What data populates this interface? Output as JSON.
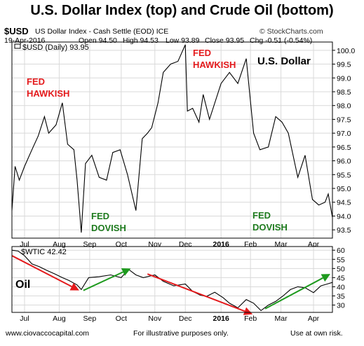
{
  "title": "U.S. Dollar Index (top) and Crude Oil (bottom)",
  "header": {
    "symbol": "$USD",
    "description": "US Dollar Index - Cash Settle (EOD) ICE",
    "date": "19-Apr-2016",
    "open": "Open 94.50",
    "high": "High 94.53",
    "low": "Low 93.89",
    "close": "Close 93.95",
    "chg": "Chg -0.51 (-0.54%)",
    "credit": "© StockCharts.com"
  },
  "annotations": {
    "fed_hawkish_1": [
      "FED",
      "HAWKISH"
    ],
    "fed_dovish_1": [
      "FED",
      "DOVISH"
    ],
    "fed_hawkish_2": [
      "FED",
      "HAWKISH"
    ],
    "fed_dovish_2": [
      "FED",
      "DOVISH"
    ],
    "usd_label": "U.S. Dollar",
    "oil_label": "Oil"
  },
  "footer": {
    "website": "www.ciovaccocapital.com",
    "disclaimer": "For illustrative purposes only.",
    "risk": "Use at own risk."
  },
  "colors": {
    "red_arrow": "#e41a1c",
    "green_arrow": "#1e9a1e",
    "line": "#000000"
  },
  "chart_data": [
    {
      "type": "line",
      "legend": "$USD (Daily) 93.95",
      "ylim": [
        93.2,
        100.3
      ],
      "yticks": [
        93.5,
        94.0,
        94.5,
        95.0,
        95.5,
        96.0,
        96.5,
        97.0,
        97.5,
        98.0,
        98.5,
        99.0,
        99.5,
        100.0
      ],
      "ytick_labels": [
        "93.5",
        "94.0",
        "94.5",
        "95.0",
        "95.5",
        "96.0",
        "96.5",
        "97.0",
        "97.5",
        "98.0",
        "98.5",
        "99.0",
        "99.5",
        "100.0"
      ],
      "x_tick_labels": [
        "Jul",
        "Aug",
        "Sep",
        "Oct",
        "Nov",
        "Dec",
        "2016",
        "Feb",
        "Mar",
        "Apr"
      ],
      "x_start": "2015-06-19",
      "x_end": "2016-04-19",
      "x_ticks": [
        "2015-07-01",
        "2015-08-03",
        "2015-09-01",
        "2015-10-01",
        "2015-11-02",
        "2015-12-01",
        "2016-01-04",
        "2016-02-01",
        "2016-03-01",
        "2016-04-01"
      ],
      "series": [
        {
          "name": "$USD",
          "x": [
            "2015-06-19",
            "2015-06-22",
            "2015-06-26",
            "2015-07-01",
            "2015-07-08",
            "2015-07-14",
            "2015-07-20",
            "2015-07-24",
            "2015-07-31",
            "2015-08-06",
            "2015-08-11",
            "2015-08-17",
            "2015-08-20",
            "2015-08-24",
            "2015-08-28",
            "2015-09-03",
            "2015-09-10",
            "2015-09-17",
            "2015-09-23",
            "2015-09-30",
            "2015-10-07",
            "2015-10-15",
            "2015-10-21",
            "2015-10-26",
            "2015-10-30",
            "2015-11-05",
            "2015-11-10",
            "2015-11-17",
            "2015-11-24",
            "2015-12-01",
            "2015-12-03",
            "2015-12-08",
            "2015-12-14",
            "2015-12-18",
            "2015-12-24",
            "2016-01-04",
            "2016-01-12",
            "2016-01-20",
            "2016-01-28",
            "2016-02-04",
            "2016-02-10",
            "2016-02-18",
            "2016-02-25",
            "2016-03-02",
            "2016-03-08",
            "2016-03-17",
            "2016-03-24",
            "2016-03-31",
            "2016-04-06",
            "2016-04-12",
            "2016-04-15",
            "2016-04-19"
          ],
          "values": [
            94.2,
            95.8,
            95.3,
            95.8,
            96.4,
            96.9,
            97.6,
            97.0,
            97.3,
            98.1,
            96.6,
            96.4,
            95.3,
            93.4,
            95.9,
            96.2,
            95.4,
            95.3,
            96.3,
            96.4,
            95.5,
            94.2,
            96.8,
            97.0,
            97.2,
            98.1,
            99.2,
            99.5,
            99.6,
            100.2,
            97.8,
            97.9,
            97.4,
            98.4,
            97.5,
            98.8,
            99.2,
            98.8,
            99.7,
            97.0,
            96.4,
            96.5,
            97.6,
            97.4,
            97.0,
            95.4,
            96.2,
            94.6,
            94.4,
            94.5,
            94.8,
            93.95
          ]
        }
      ]
    },
    {
      "type": "line",
      "legend": "$WTIC 42.42",
      "ylim": [
        26,
        62
      ],
      "yticks": [
        30,
        35,
        40,
        45,
        50,
        55,
        60
      ],
      "ytick_labels": [
        "30",
        "35",
        "40",
        "45",
        "50",
        "55",
        "60"
      ],
      "series": [
        {
          "name": "$WTIC",
          "x": [
            "2015-06-19",
            "2015-06-25",
            "2015-07-01",
            "2015-07-08",
            "2015-07-15",
            "2015-07-22",
            "2015-07-30",
            "2015-08-06",
            "2015-08-12",
            "2015-08-20",
            "2015-08-24",
            "2015-08-31",
            "2015-09-10",
            "2015-09-21",
            "2015-10-01",
            "2015-10-08",
            "2015-10-15",
            "2015-10-22",
            "2015-11-02",
            "2015-11-10",
            "2015-11-20",
            "2015-12-01",
            "2015-12-08",
            "2015-12-15",
            "2015-12-21",
            "2015-12-29",
            "2016-01-06",
            "2016-01-12",
            "2016-01-20",
            "2016-01-28",
            "2016-02-04",
            "2016-02-11",
            "2016-02-18",
            "2016-02-25",
            "2016-03-03",
            "2016-03-10",
            "2016-03-17",
            "2016-03-24",
            "2016-04-01",
            "2016-04-08",
            "2016-04-14",
            "2016-04-19"
          ],
          "values": [
            60,
            59.5,
            57,
            52.5,
            51,
            49,
            47,
            45,
            43.5,
            41,
            38.5,
            45,
            45.5,
            46.5,
            45,
            49.5,
            46.5,
            45,
            46.5,
            43,
            40.5,
            41.5,
            37.5,
            35.5,
            34.7,
            37,
            34,
            31,
            28.5,
            33,
            31,
            27,
            30,
            32,
            35,
            38.5,
            40,
            39.5,
            36.8,
            40.5,
            41.5,
            42.4
          ]
        }
      ],
      "arrows": [
        {
          "color": "red",
          "from": [
            "2015-06-19",
            57
          ],
          "to": [
            "2015-08-22",
            38
          ]
        },
        {
          "color": "green",
          "from": [
            "2015-08-26",
            38
          ],
          "to": [
            "2015-10-10",
            50
          ]
        },
        {
          "color": "red",
          "from": [
            "2015-10-26",
            47
          ],
          "to": [
            "2016-02-03",
            25
          ]
        },
        {
          "color": "green",
          "from": [
            "2016-02-15",
            28
          ],
          "to": [
            "2016-04-17",
            47
          ]
        }
      ]
    }
  ]
}
